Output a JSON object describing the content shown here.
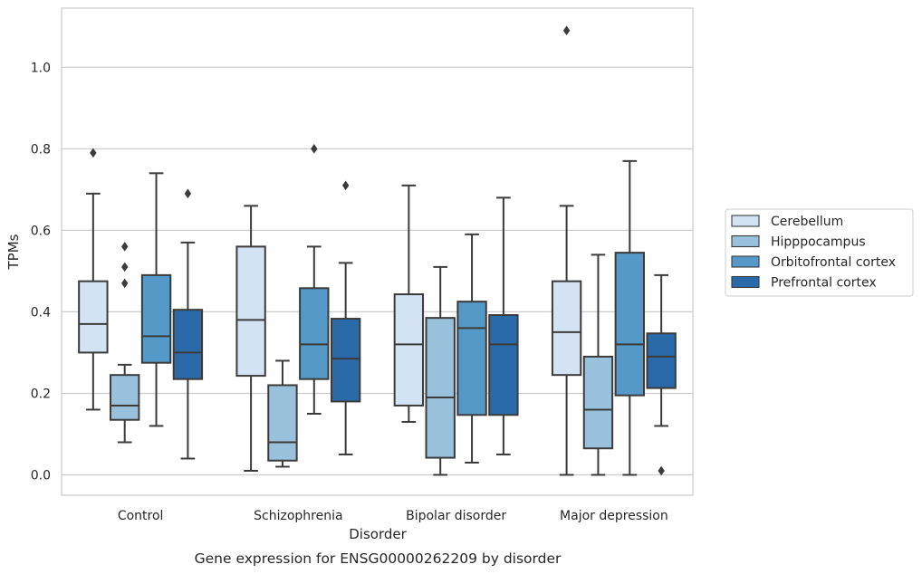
{
  "chart_data": {
    "type": "box",
    "title": "",
    "caption": "Gene expression for ENSG00000262209 by disorder",
    "xlabel": "Disorder",
    "ylabel": "TPMs",
    "ylim": [
      -0.05,
      1.145
    ],
    "yticks": [
      0.0,
      0.2,
      0.4,
      0.6,
      0.8,
      1.0
    ],
    "ytick_labels": [
      "0.0",
      "0.2",
      "0.4",
      "0.6",
      "0.8",
      "1.0"
    ],
    "grid": "horizontal",
    "legend_position": "right",
    "categories": [
      "Control",
      "Schizophrenia",
      "Bipolar disorder",
      "Major depression"
    ],
    "series": [
      {
        "name": "Cerebellum",
        "color": "#d4e3f3",
        "boxes": [
          {
            "whislo": 0.16,
            "q1": 0.3,
            "med": 0.37,
            "q3": 0.475,
            "whishi": 0.69,
            "fliers": [
              0.79
            ]
          },
          {
            "whislo": 0.01,
            "q1": 0.243,
            "med": 0.38,
            "q3": 0.56,
            "whishi": 0.66,
            "fliers": []
          },
          {
            "whislo": 0.13,
            "q1": 0.17,
            "med": 0.32,
            "q3": 0.443,
            "whishi": 0.71,
            "fliers": []
          },
          {
            "whislo": 0.0,
            "q1": 0.245,
            "med": 0.35,
            "q3": 0.475,
            "whishi": 0.66,
            "fliers": [
              1.09
            ]
          }
        ]
      },
      {
        "name": "Hipppocampus",
        "color": "#99c1dc",
        "boxes": [
          {
            "whislo": 0.08,
            "q1": 0.135,
            "med": 0.17,
            "q3": 0.245,
            "whishi": 0.27,
            "fliers": [
              0.47,
              0.51,
              0.56
            ]
          },
          {
            "whislo": 0.02,
            "q1": 0.035,
            "med": 0.08,
            "q3": 0.22,
            "whishi": 0.28,
            "fliers": []
          },
          {
            "whislo": 0.0,
            "q1": 0.042,
            "med": 0.19,
            "q3": 0.385,
            "whishi": 0.51,
            "fliers": []
          },
          {
            "whislo": 0.0,
            "q1": 0.065,
            "med": 0.16,
            "q3": 0.29,
            "whishi": 0.54,
            "fliers": []
          }
        ]
      },
      {
        "name": "Orbitofrontal cortex",
        "color": "#5499c7",
        "boxes": [
          {
            "whislo": 0.12,
            "q1": 0.275,
            "med": 0.34,
            "q3": 0.49,
            "whishi": 0.74,
            "fliers": []
          },
          {
            "whislo": 0.15,
            "q1": 0.235,
            "med": 0.32,
            "q3": 0.458,
            "whishi": 0.56,
            "fliers": [
              0.8
            ]
          },
          {
            "whislo": 0.03,
            "q1": 0.147,
            "med": 0.36,
            "q3": 0.425,
            "whishi": 0.59,
            "fliers": []
          },
          {
            "whislo": 0.0,
            "q1": 0.195,
            "med": 0.32,
            "q3": 0.545,
            "whishi": 0.77,
            "fliers": []
          }
        ]
      },
      {
        "name": "Prefrontal cortex",
        "color": "#2a6aa9",
        "boxes": [
          {
            "whislo": 0.04,
            "q1": 0.235,
            "med": 0.3,
            "q3": 0.405,
            "whishi": 0.57,
            "fliers": [
              0.69
            ]
          },
          {
            "whislo": 0.05,
            "q1": 0.18,
            "med": 0.285,
            "q3": 0.383,
            "whishi": 0.52,
            "fliers": [
              0.71
            ]
          },
          {
            "whislo": 0.05,
            "q1": 0.147,
            "med": 0.32,
            "q3": 0.392,
            "whishi": 0.68,
            "fliers": []
          },
          {
            "whislo": 0.12,
            "q1": 0.213,
            "med": 0.29,
            "q3": 0.347,
            "whishi": 0.49,
            "fliers": [
              0.01
            ]
          }
        ]
      }
    ]
  }
}
